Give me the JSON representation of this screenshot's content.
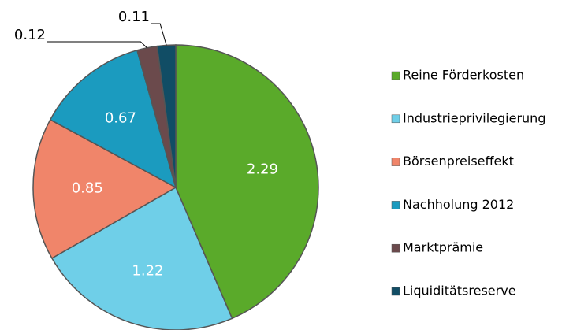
{
  "chart_data": {
    "type": "pie",
    "categories": [
      "Reine Förderkosten",
      "Industrieprivilegierung",
      "Börsenpreiseffekt",
      "Nachholung 2012",
      "Marktprämie",
      "Liquiditätsreserve"
    ],
    "values": [
      2.29,
      1.22,
      0.85,
      0.67,
      0.12,
      0.11
    ],
    "colors": [
      "#5aaa2a",
      "#6fcfe8",
      "#f0856a",
      "#1b9bbf",
      "#6b4a4c",
      "#114d65"
    ],
    "legend": "right"
  }
}
